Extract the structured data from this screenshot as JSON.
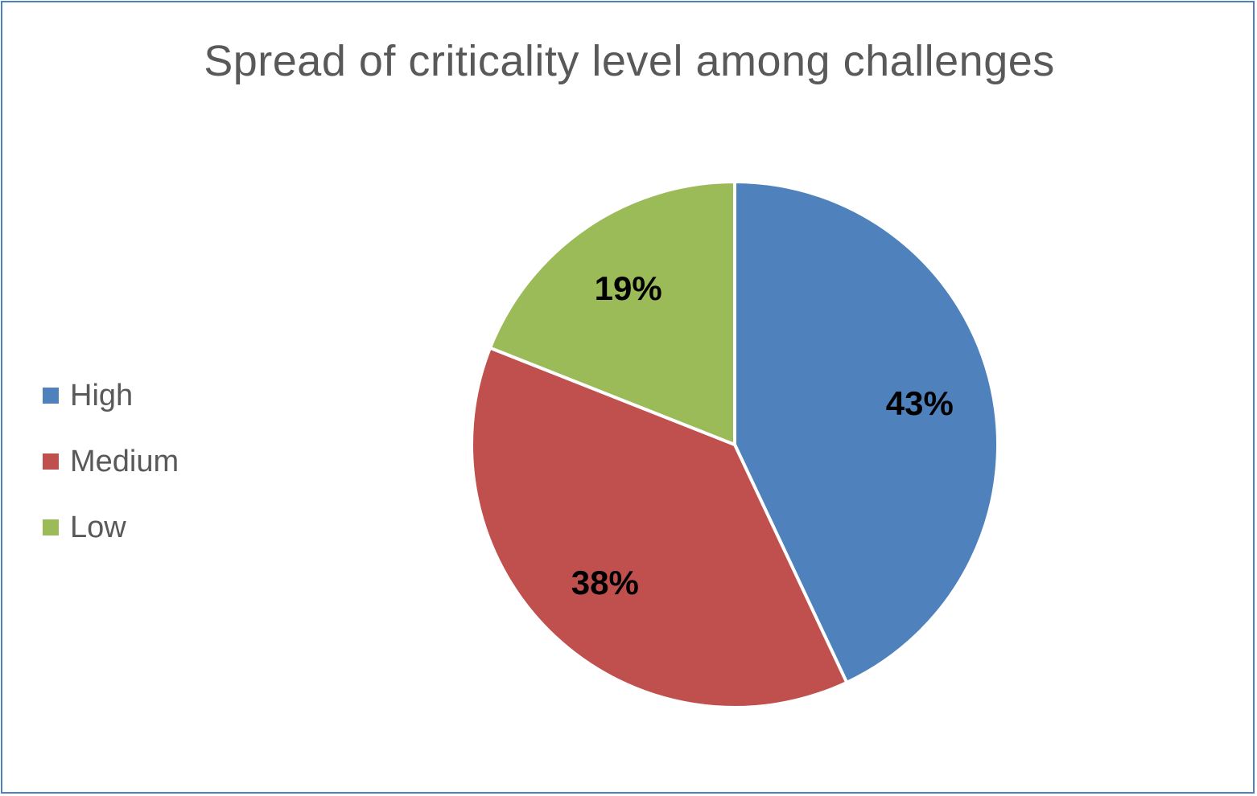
{
  "chart_data": {
    "type": "pie",
    "title": "Spread of criticality level among challenges",
    "categories": [
      "High",
      "Medium",
      "Low"
    ],
    "values": [
      43,
      38,
      19
    ],
    "data_labels": [
      "43%",
      "38%",
      "19%"
    ],
    "colors": [
      "#4f81bd",
      "#c0504d",
      "#9bbb59"
    ],
    "legend": {
      "placement": "left",
      "entries": [
        "High",
        "Medium",
        "Low"
      ]
    }
  }
}
